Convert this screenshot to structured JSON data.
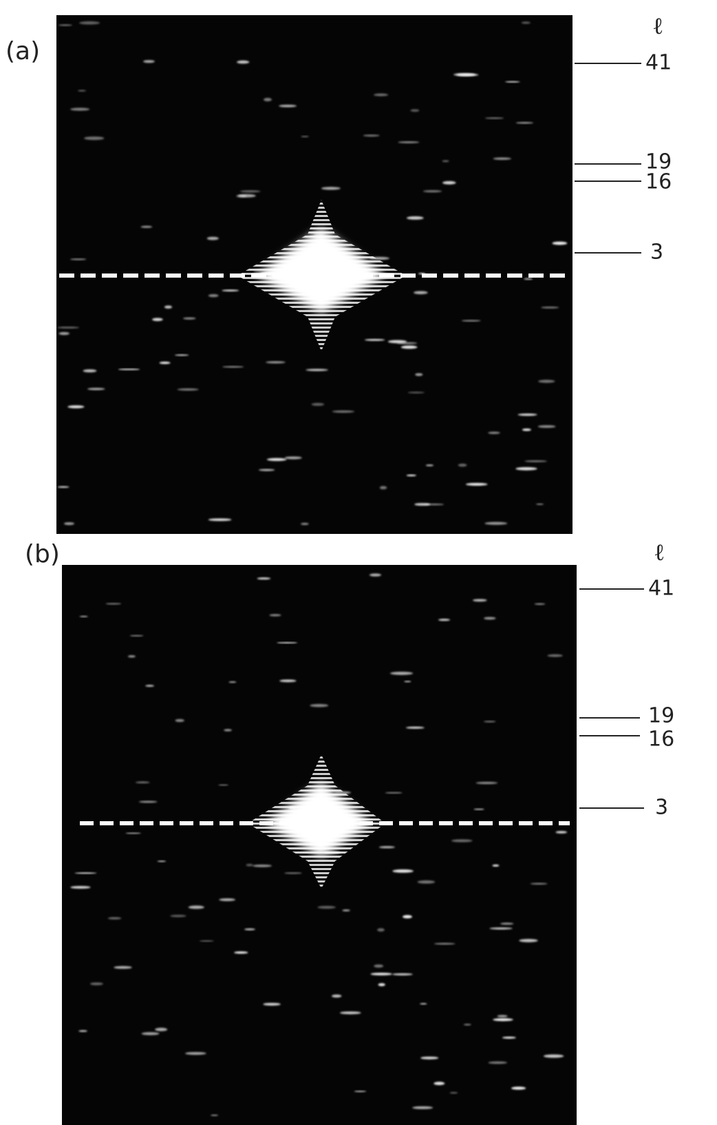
{
  "panels": [
    {
      "label": "(a)",
      "axis_symbol": "ℓ",
      "layer_lines": [
        "41",
        "19",
        "16",
        "3"
      ]
    },
    {
      "label": "(b)",
      "axis_symbol": "ℓ",
      "layer_lines": [
        "41",
        "19",
        "16",
        "3"
      ]
    }
  ]
}
